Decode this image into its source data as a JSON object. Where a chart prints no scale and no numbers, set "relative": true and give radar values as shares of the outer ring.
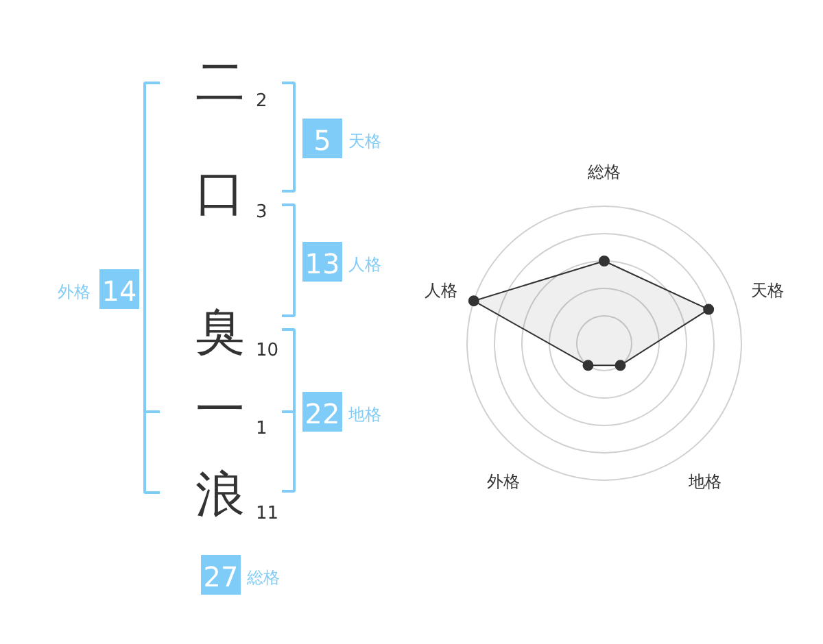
{
  "chart_data": [
    {
      "type": "other",
      "categories": [
        "二",
        "口",
        "臭",
        "一",
        "浪"
      ],
      "values": [
        2,
        3,
        10,
        1,
        11
      ],
      "data_labels": true
    },
    {
      "type": "other",
      "categories": [
        "天格",
        "人格",
        "外格",
        "地格",
        "総格"
      ],
      "values": [
        5,
        13,
        14,
        22,
        27
      ],
      "data_labels": true,
      "color": "#80ccf8"
    },
    {
      "type": "radar",
      "categories": [
        "総格",
        "天格",
        "地格",
        "外格",
        "人格"
      ],
      "relative": true,
      "grid": true,
      "marker": "circle",
      "series": [
        {
          "color": "#333333",
          "values": [
            0.6,
            0.8,
            0.2,
            0.2,
            1.0
          ]
        }
      ]
    }
  ]
}
